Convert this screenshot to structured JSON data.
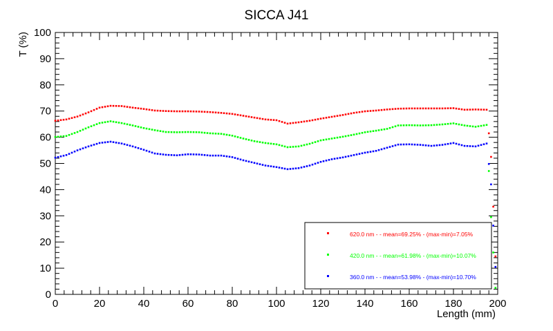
{
  "chart_data": {
    "type": "scatter",
    "title": "SICCA J41",
    "xlabel": "Length (mm)",
    "ylabel": "T (%)",
    "xlim": [
      0,
      200
    ],
    "ylim": [
      0,
      100
    ],
    "x_ticks": [
      0,
      20,
      40,
      60,
      80,
      100,
      120,
      140,
      160,
      180,
      200
    ],
    "y_ticks": [
      0,
      10,
      20,
      30,
      40,
      50,
      60,
      70,
      80,
      90,
      100
    ],
    "grid": false,
    "legend_position": "bottom-right",
    "series": [
      {
        "name": "620.0 nm -  - mean=69.25% - (max-min)=7.05%",
        "color": "#ff0000",
        "x": [
          0,
          5,
          10,
          15,
          20,
          25,
          30,
          35,
          40,
          45,
          50,
          55,
          60,
          65,
          70,
          75,
          80,
          85,
          90,
          95,
          100,
          105,
          110,
          115,
          120,
          125,
          130,
          135,
          140,
          145,
          150,
          155,
          160,
          165,
          170,
          175,
          180,
          185,
          190,
          195,
          197,
          199
        ],
        "y": [
          66.3,
          66.8,
          67.9,
          69.5,
          71.3,
          72,
          71.9,
          71.3,
          70.8,
          70.2,
          70,
          69.9,
          69.9,
          69.8,
          69.6,
          69.3,
          68.9,
          68.2,
          67.5,
          66.8,
          66.5,
          65.2,
          65.7,
          66.3,
          67.1,
          67.8,
          68.5,
          69.3,
          69.9,
          70.2,
          70.6,
          70.9,
          71,
          71,
          71,
          71,
          71.1,
          70.5,
          70.6,
          70.5,
          52.5,
          14.5
        ]
      },
      {
        "name": "420.0 nm -  - mean=61.98% - (max-min)=10.07%",
        "color": "#00ff00",
        "x": [
          0,
          5,
          10,
          15,
          20,
          25,
          30,
          35,
          40,
          45,
          50,
          55,
          60,
          65,
          70,
          75,
          80,
          85,
          90,
          95,
          100,
          105,
          110,
          115,
          120,
          125,
          130,
          135,
          140,
          145,
          150,
          155,
          160,
          165,
          170,
          175,
          180,
          185,
          190,
          195,
          197,
          199
        ],
        "y": [
          60.1,
          60.5,
          62,
          63.8,
          65.4,
          66.1,
          65.4,
          64.5,
          63.5,
          62.7,
          62,
          61.9,
          62,
          61.9,
          61.5,
          61.3,
          60.6,
          59.5,
          58.5,
          57.8,
          57.3,
          56.2,
          56.5,
          57.5,
          58.8,
          59.5,
          60.2,
          61,
          61.9,
          62.5,
          63.2,
          64.5,
          64.6,
          64.5,
          64.6,
          64.9,
          65.3,
          64.5,
          64,
          64.7,
          29.5,
          2.5
        ]
      },
      {
        "name": "360.0 nm -  - mean=53.98% - (max-min)=10.70%",
        "color": "#0000ff",
        "x": [
          0,
          5,
          10,
          15,
          20,
          25,
          30,
          35,
          40,
          45,
          50,
          55,
          60,
          65,
          70,
          75,
          80,
          85,
          90,
          95,
          100,
          105,
          110,
          115,
          120,
          125,
          130,
          135,
          140,
          145,
          150,
          155,
          160,
          165,
          170,
          175,
          180,
          185,
          190,
          195,
          197,
          199
        ],
        "y": [
          52.2,
          53.2,
          55,
          56.5,
          57.8,
          58.3,
          57.6,
          56.5,
          55.2,
          53.8,
          53.3,
          53.1,
          53.5,
          53.4,
          53,
          53,
          52.4,
          51.2,
          50.2,
          49.2,
          48.6,
          47.8,
          48.2,
          49.2,
          50.6,
          51.6,
          52.3,
          53.2,
          54.1,
          54.8,
          56,
          57.2,
          57.3,
          57.1,
          56.7,
          57.1,
          57.8,
          56.7,
          56.5,
          57.6,
          42,
          10.5
        ]
      }
    ]
  }
}
